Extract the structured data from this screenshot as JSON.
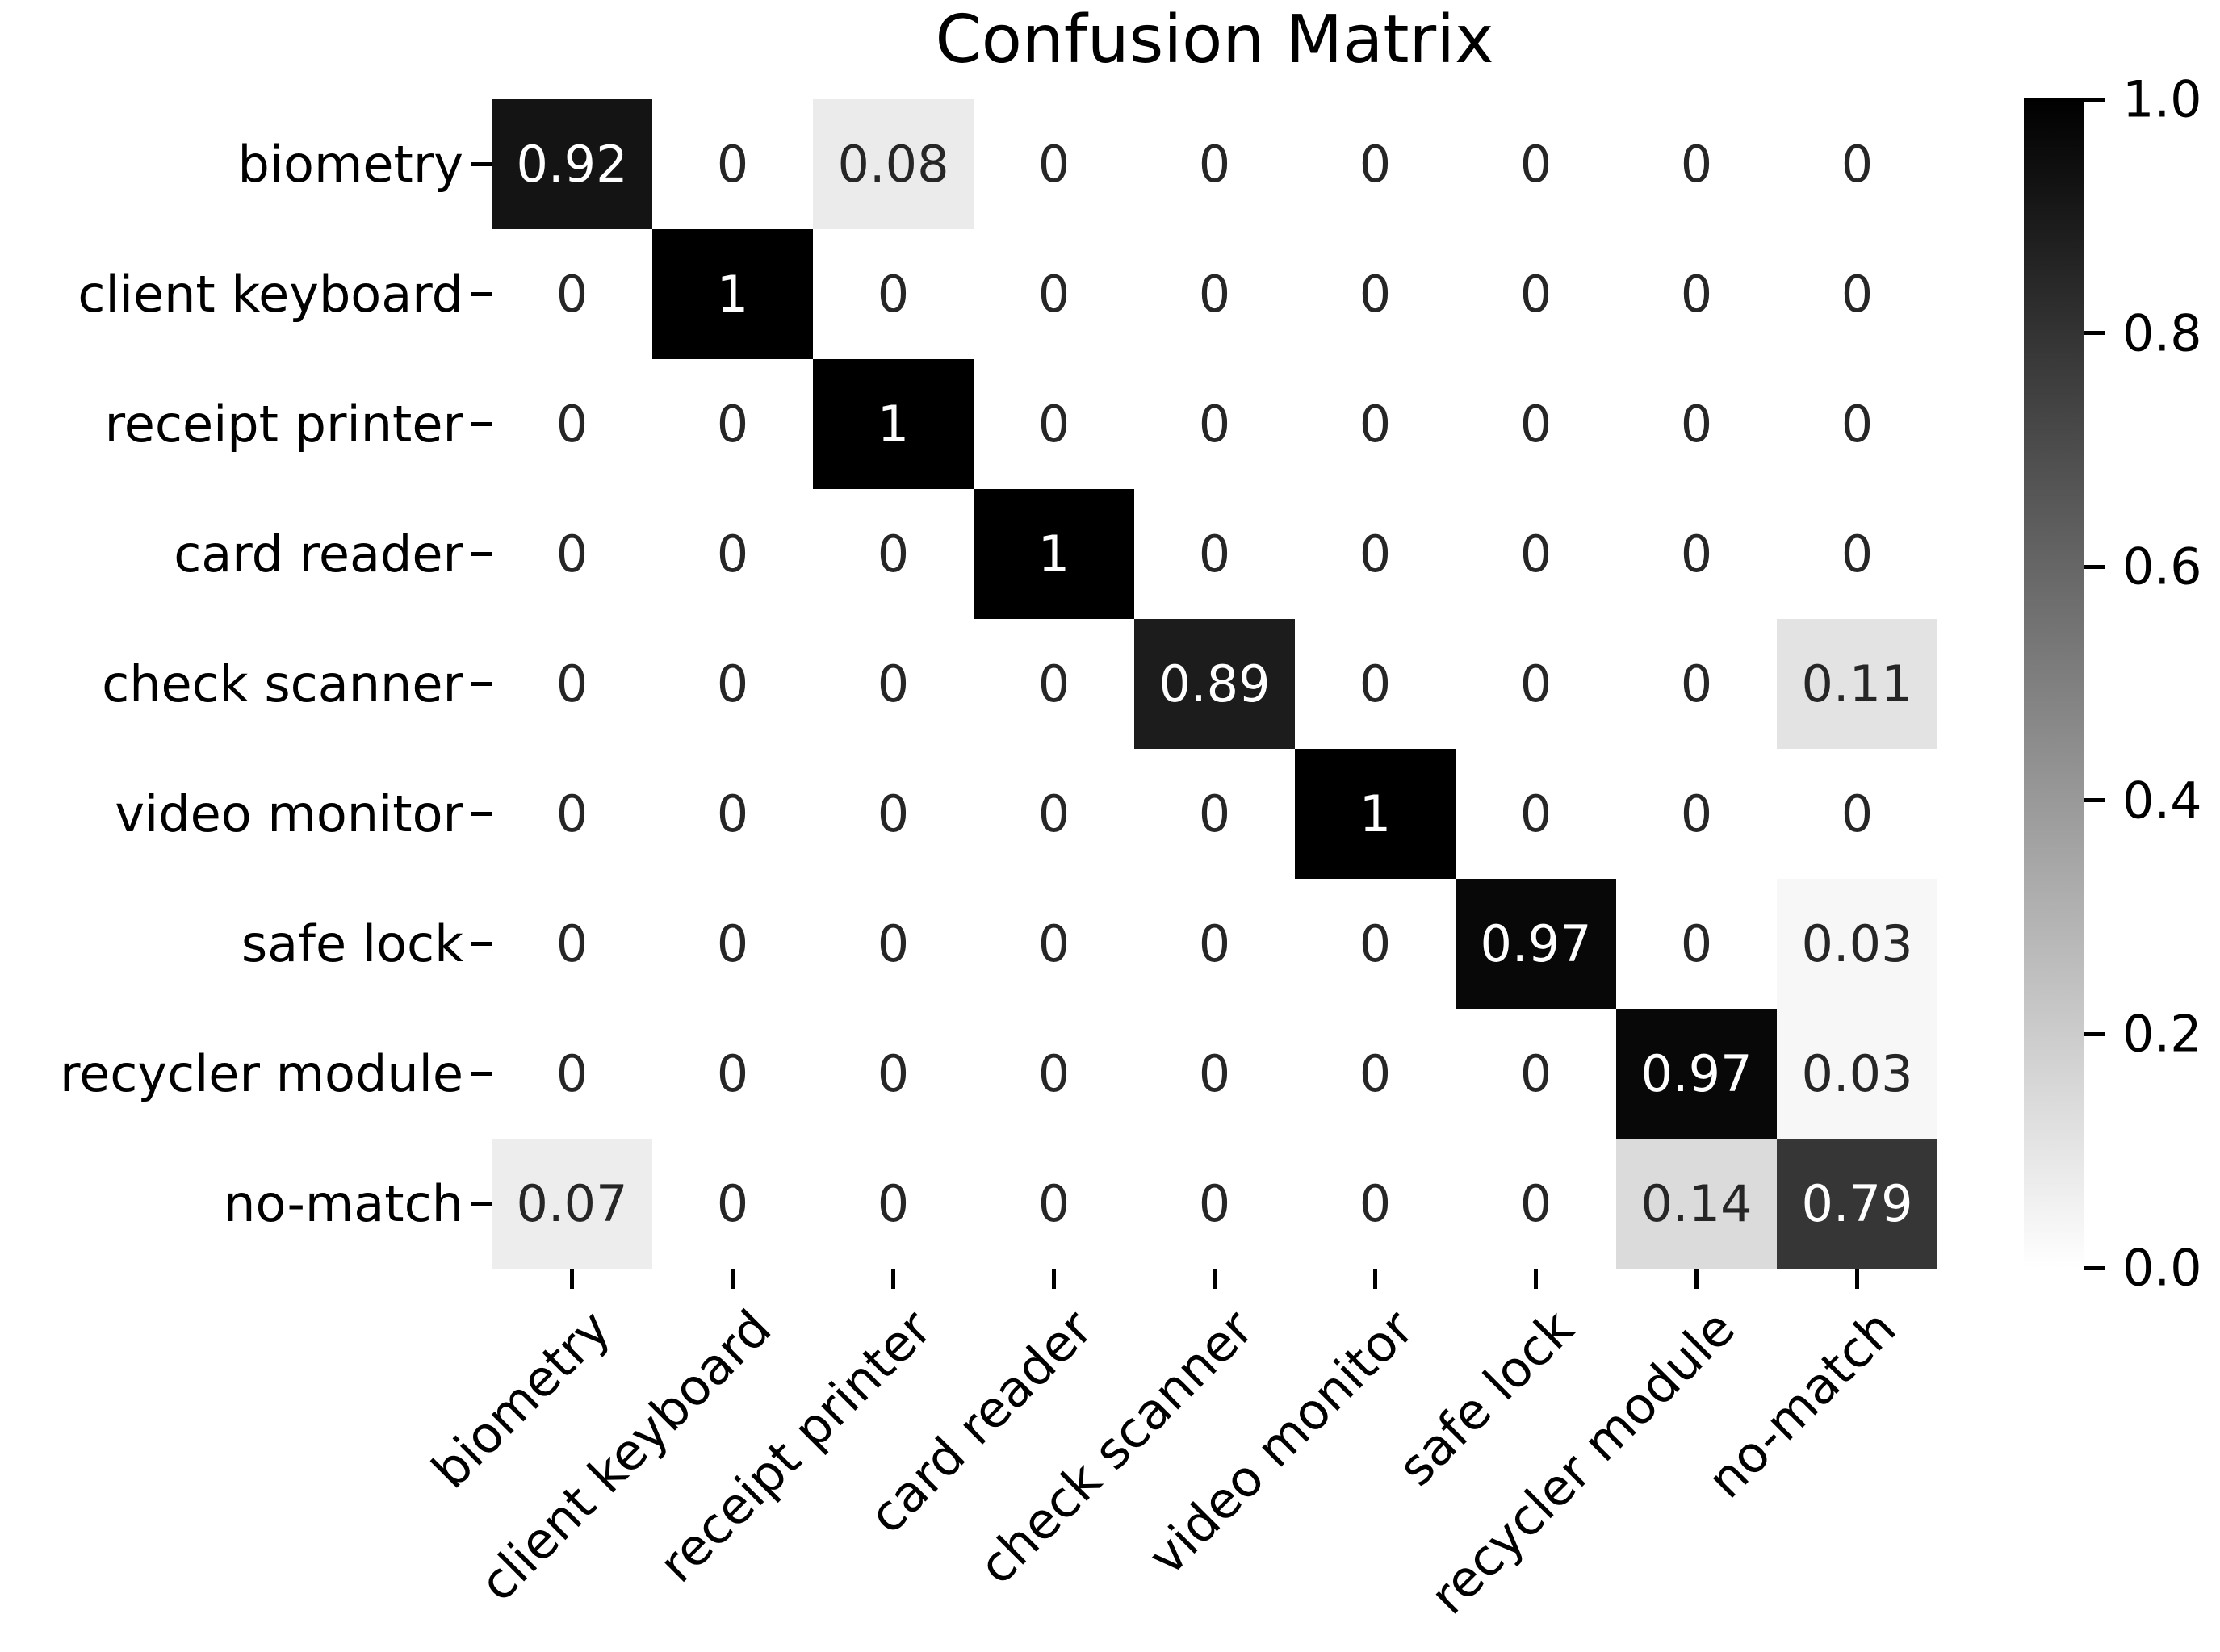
{
  "title": "Confusion Matrix",
  "chart_data": {
    "type": "heatmap",
    "title": "Confusion Matrix",
    "x_categories": [
      "biometry",
      "client keyboard",
      "receipt printer",
      "card reader",
      "check scanner",
      "video monitor",
      "safe lock",
      "recycler module",
      "no-match"
    ],
    "y_categories": [
      "biometry",
      "client keyboard",
      "receipt printer",
      "card reader",
      "check scanner",
      "video monitor",
      "safe lock",
      "recycler module",
      "no-match"
    ],
    "matrix": [
      [
        0.92,
        0,
        0.08,
        0,
        0,
        0,
        0,
        0,
        0
      ],
      [
        0,
        1,
        0,
        0,
        0,
        0,
        0,
        0,
        0
      ],
      [
        0,
        0,
        1,
        0,
        0,
        0,
        0,
        0,
        0
      ],
      [
        0,
        0,
        0,
        1,
        0,
        0,
        0,
        0,
        0
      ],
      [
        0,
        0,
        0,
        0,
        0.89,
        0,
        0,
        0,
        0.11
      ],
      [
        0,
        0,
        0,
        0,
        0,
        1,
        0,
        0,
        0
      ],
      [
        0,
        0,
        0,
        0,
        0,
        0,
        0.97,
        0,
        0.03
      ],
      [
        0,
        0,
        0,
        0,
        0,
        0,
        0,
        0.97,
        0.03
      ],
      [
        0.07,
        0,
        0,
        0,
        0,
        0,
        0,
        0.14,
        0.79
      ]
    ],
    "colormap": {
      "low_value_color": "#ffffff",
      "high_value_color": "#000000"
    },
    "annotation_text_dark": "#262626",
    "annotation_text_light": "#ffffff",
    "colorbar": {
      "tick_labels": [
        "1.0",
        "0.8",
        "0.6",
        "0.4",
        "0.2",
        "0.0"
      ],
      "vmin": 0.0,
      "vmax": 1.0,
      "position": "right"
    },
    "grid": false,
    "legend": false
  }
}
